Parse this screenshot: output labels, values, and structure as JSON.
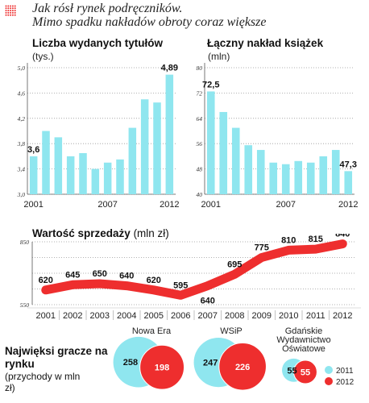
{
  "title_line1": "Jak rósł rynek podręczników.",
  "title_line2": "Mimo spadku nakładów obroty coraz większe",
  "colors": {
    "bar": "#8fe6ef",
    "bubble2011": "#8fe6ef",
    "bubble2012": "#ee2e2e",
    "line": "#ee2e2e",
    "icon": "#ee2e2e"
  },
  "chart_data": [
    {
      "type": "bar",
      "title": "Liczba wydanych tytułów",
      "unit": "(tys.)",
      "categories": [
        "2001",
        "2002",
        "2003",
        "2004",
        "2005",
        "2006",
        "2007",
        "2008",
        "2009",
        "2010",
        "2011",
        "2012"
      ],
      "xticks": [
        "2001",
        "2007",
        "2012"
      ],
      "values": [
        3.6,
        4.0,
        3.9,
        3.6,
        3.65,
        3.4,
        3.5,
        3.55,
        4.05,
        4.5,
        4.45,
        4.89
      ],
      "ylim": [
        3.0,
        5.0
      ],
      "yticks": [
        "3,0",
        "3,4",
        "3,8",
        "4,2",
        "4,6",
        "5,0"
      ],
      "labels": {
        "first": "3,6",
        "last": "4,89"
      }
    },
    {
      "type": "bar",
      "title": "Łączny nakład książek",
      "unit": "(mln)",
      "categories": [
        "2001",
        "2002",
        "2003",
        "2004",
        "2005",
        "2006",
        "2007",
        "2008",
        "2009",
        "2010",
        "2011",
        "2012"
      ],
      "xticks": [
        "2001",
        "2007",
        "2012"
      ],
      "values": [
        72.5,
        66,
        61,
        55.5,
        54,
        50,
        49.5,
        50.5,
        50,
        52,
        54,
        47.3
      ],
      "ylim": [
        40,
        80
      ],
      "yticks": [
        "40",
        "48",
        "56",
        "64",
        "72",
        "80"
      ],
      "labels": {
        "first": "72,5",
        "last": "47,3"
      }
    },
    {
      "type": "line",
      "title": "Wartość sprzedaży",
      "unit": "(mln zł)",
      "categories": [
        "2001",
        "2002",
        "2003",
        "2004",
        "2005",
        "2006",
        "2007",
        "2008",
        "2009",
        "2010",
        "2011",
        "2012"
      ],
      "values": [
        620,
        645,
        650,
        640,
        620,
        595,
        640,
        695,
        775,
        810,
        815,
        840
      ],
      "value_labels": [
        "620",
        "645",
        "650",
        "640",
        "620",
        "595",
        "640",
        "695",
        "775",
        "810",
        "815",
        "840"
      ],
      "ylim": [
        550,
        850
      ],
      "yticks": [
        "550",
        "850"
      ]
    },
    {
      "type": "bubble",
      "title": "Najwięksi gracze na rynku",
      "unit": "(przychody w mln zł)",
      "series_names": [
        "2011",
        "2012"
      ],
      "companies": [
        {
          "name": [
            "Nowa Era"
          ],
          "v2011": 258,
          "v2012": 198
        },
        {
          "name": [
            "WSiP"
          ],
          "v2011": 247,
          "v2012": 226
        },
        {
          "name": [
            "Gdańskie",
            "Wydawnictwo",
            "Oświatowe"
          ],
          "v2011": 55,
          "v2012": 55
        }
      ]
    }
  ]
}
